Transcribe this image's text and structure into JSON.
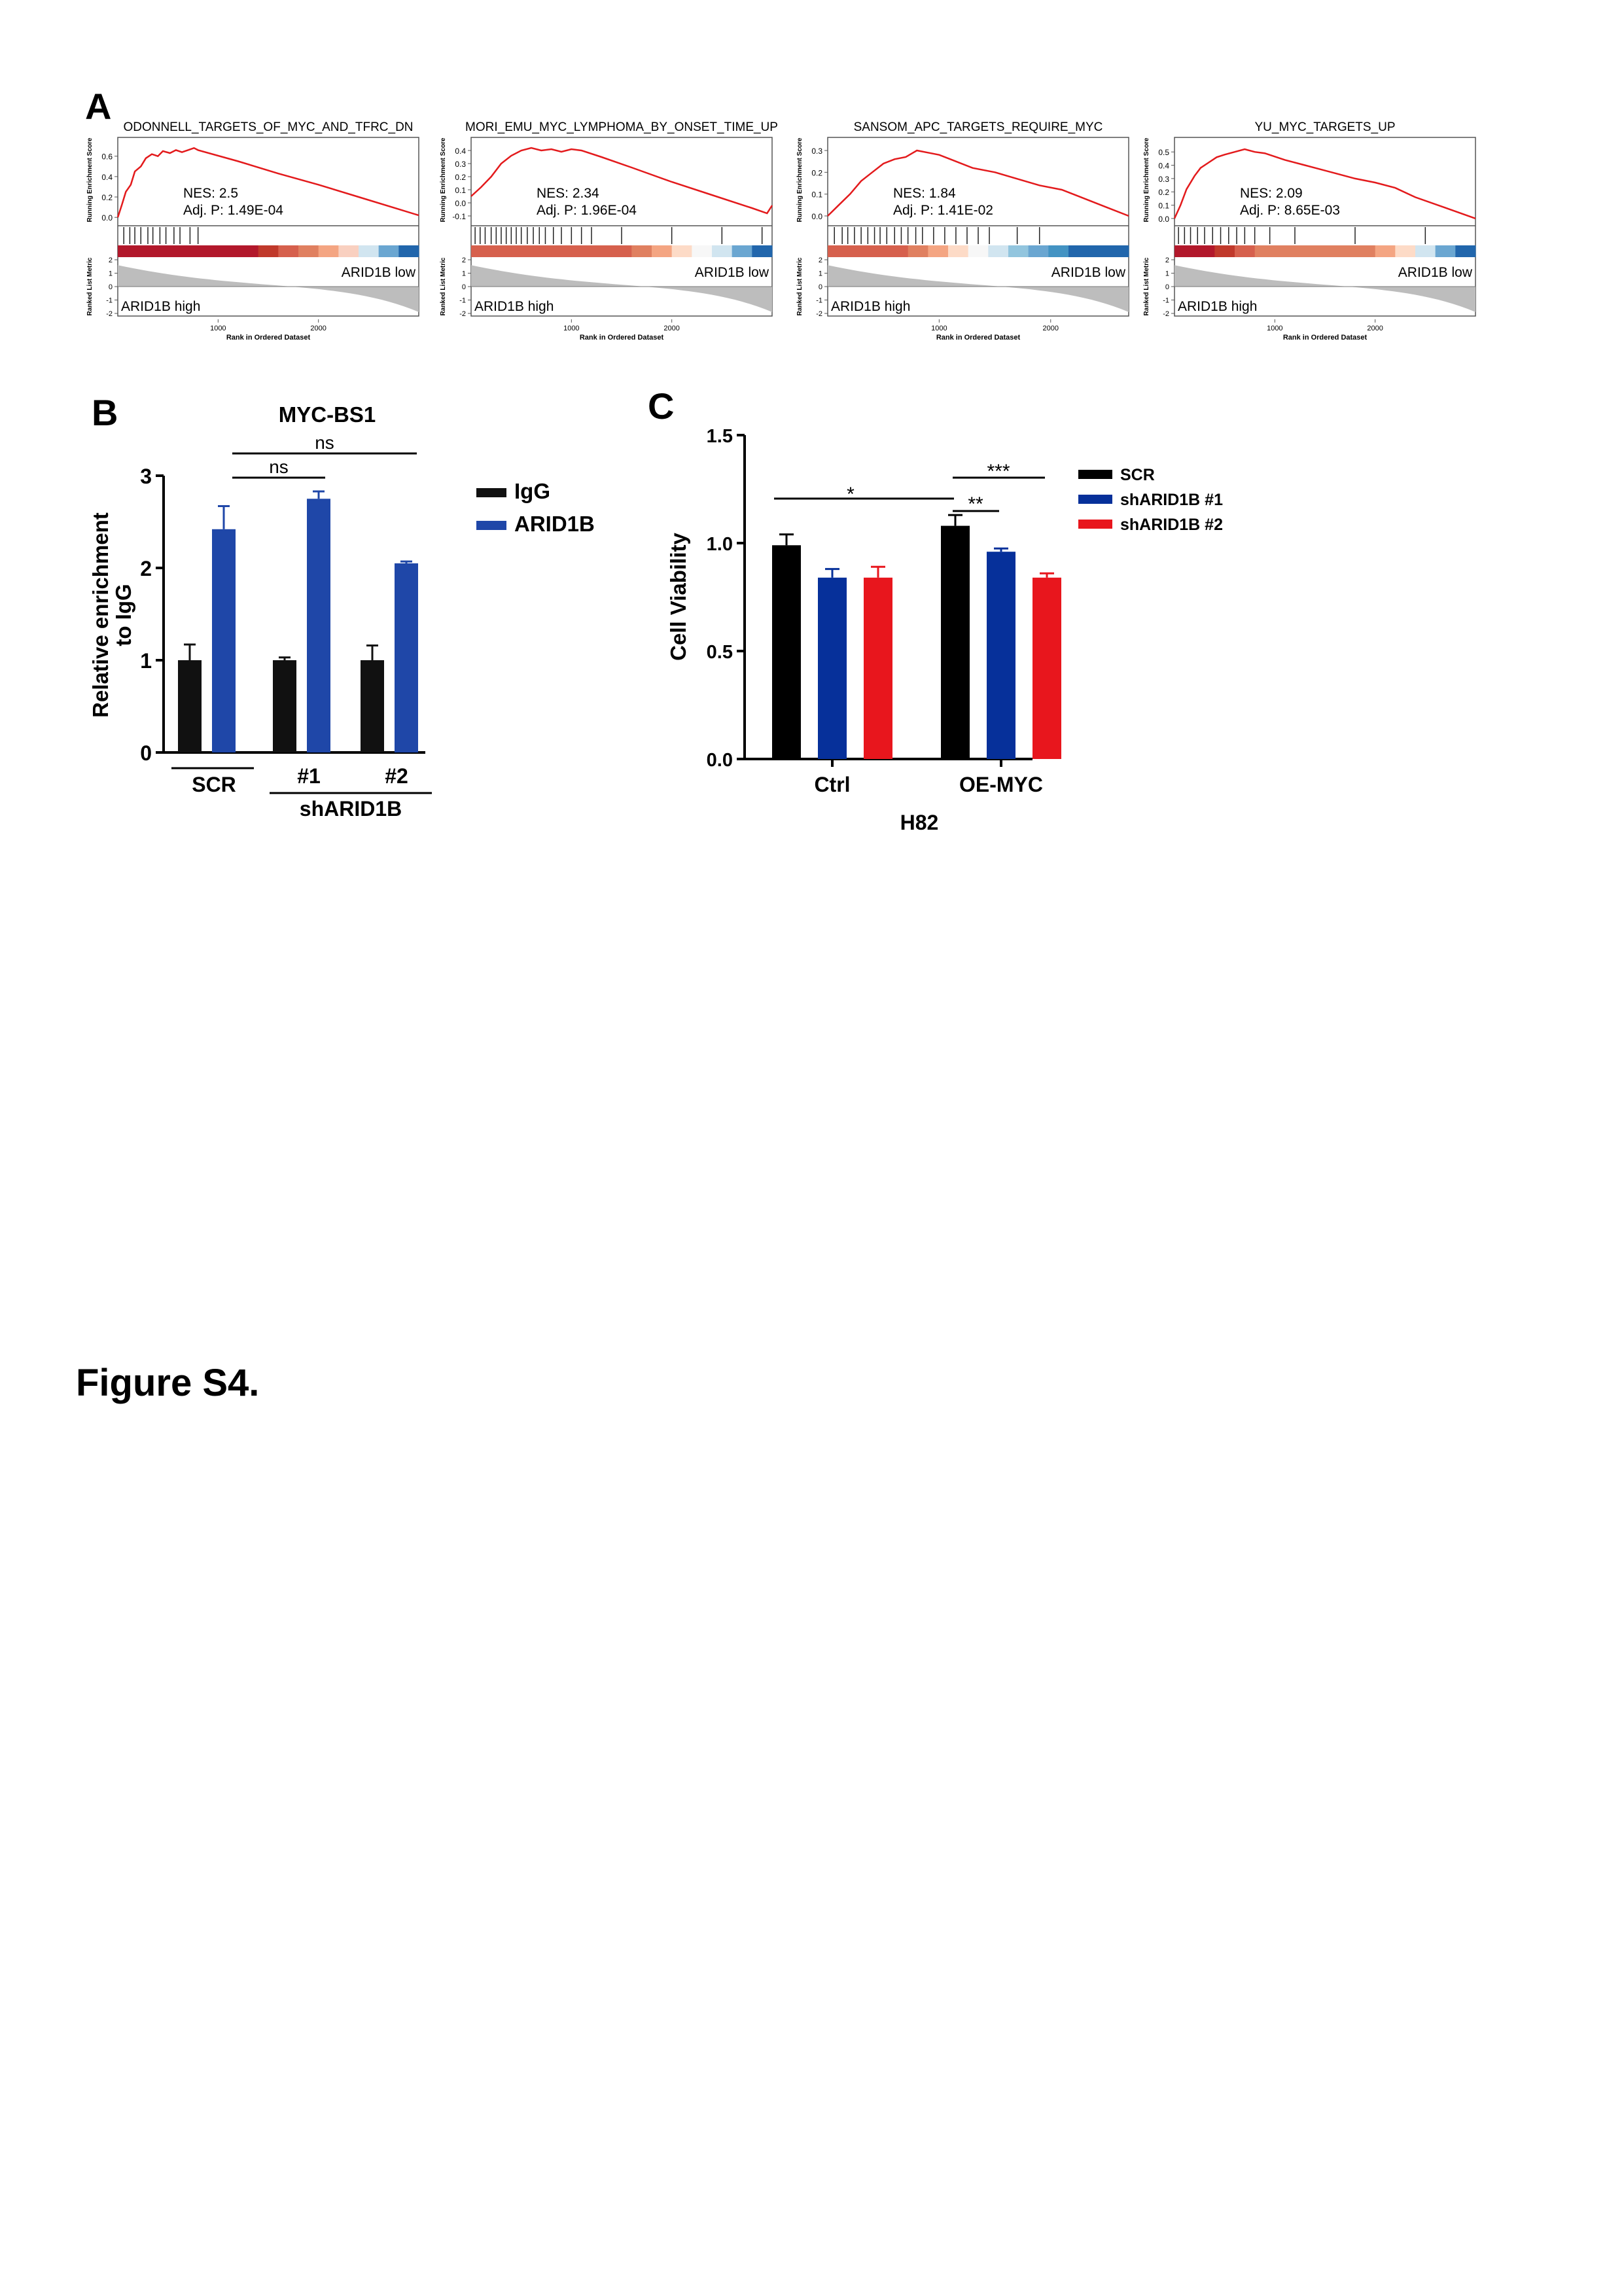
{
  "figure_caption": "Figure S4.",
  "panel_labels": {
    "a": "A",
    "b": "B",
    "c": "C"
  },
  "gsea": {
    "y_axis_top": "Running Enrichment Score",
    "y_axis_bottom": "Ranked List Metric",
    "x_axis": "Rank in Ordered Dataset",
    "low_label": "ARID1B low",
    "high_label": "ARID1B high",
    "nes_prefix": "NES:",
    "adjp_prefix": "Adj. P:",
    "panels": [
      {
        "title": "ODONNELL_TARGETS_OF_MYC_AND_TFRC_DN",
        "nes": "2.5",
        "adj_p": "1.49E-04",
        "es_ticks": [
          "0.6",
          "0.4",
          "0.2",
          "0.0"
        ],
        "es_range": [
          -0.05,
          0.72
        ],
        "rank_ticks": [
          "1000",
          "2000"
        ],
        "rank_max": 3000,
        "metric_ticks": [
          "2",
          "1",
          "0",
          "-1",
          "-2"
        ],
        "es_curve": [
          [
            0,
            0
          ],
          [
            40,
            0.12
          ],
          [
            80,
            0.25
          ],
          [
            130,
            0.32
          ],
          [
            170,
            0.45
          ],
          [
            230,
            0.5
          ],
          [
            280,
            0.58
          ],
          [
            340,
            0.62
          ],
          [
            400,
            0.6
          ],
          [
            450,
            0.65
          ],
          [
            520,
            0.63
          ],
          [
            580,
            0.66
          ],
          [
            640,
            0.64
          ],
          [
            700,
            0.66
          ],
          [
            760,
            0.68
          ],
          [
            800,
            0.66
          ],
          [
            1200,
            0.55
          ],
          [
            1600,
            0.43
          ],
          [
            2000,
            0.32
          ],
          [
            2400,
            0.2
          ],
          [
            2800,
            0.08
          ],
          [
            3000,
            0.02
          ]
        ],
        "hits": [
          60,
          120,
          170,
          230,
          300,
          350,
          420,
          480,
          560,
          620,
          720,
          800
        ],
        "strip": [
          "#b2182b",
          "#b2182b",
          "#b2182b",
          "#b2182b",
          "#b2182b",
          "#b2182b",
          "#b2182b",
          "#c0392b",
          "#d6604d",
          "#e08060",
          "#f4a582",
          "#f9d0c0",
          "#d1e5f0",
          "#6aa6d1",
          "#2166ac"
        ]
      },
      {
        "title": "MORI_EMU_MYC_LYMPHOMA_BY_ONSET_TIME_UP",
        "nes": "2.34",
        "adj_p": "1.96E-04",
        "es_ticks": [
          "0.4",
          "0.3",
          "0.2",
          "0.1",
          "0.0",
          "-0.1"
        ],
        "es_range": [
          -0.15,
          0.45
        ],
        "rank_ticks": [
          "1000",
          "2000"
        ],
        "rank_max": 3000,
        "metric_ticks": [
          "2",
          "1",
          "0",
          "-1",
          "-2"
        ],
        "es_curve": [
          [
            0,
            0.05
          ],
          [
            100,
            0.12
          ],
          [
            200,
            0.2
          ],
          [
            300,
            0.3
          ],
          [
            400,
            0.36
          ],
          [
            500,
            0.4
          ],
          [
            600,
            0.42
          ],
          [
            700,
            0.4
          ],
          [
            800,
            0.41
          ],
          [
            900,
            0.39
          ],
          [
            1000,
            0.41
          ],
          [
            1100,
            0.4
          ],
          [
            1300,
            0.35
          ],
          [
            1600,
            0.27
          ],
          [
            2000,
            0.16
          ],
          [
            2400,
            0.06
          ],
          [
            2800,
            -0.04
          ],
          [
            2950,
            -0.08
          ],
          [
            3000,
            -0.02
          ]
        ],
        "hits": [
          40,
          90,
          140,
          200,
          250,
          300,
          350,
          400,
          450,
          500,
          560,
          620,
          680,
          740,
          820,
          900,
          1000,
          1100,
          1200,
          1500,
          2000,
          2500,
          2900
        ],
        "strip": [
          "#d6604d",
          "#d6604d",
          "#d6604d",
          "#d6604d",
          "#d6604d",
          "#d6604d",
          "#d6604d",
          "#d6604d",
          "#e08060",
          "#f4a582",
          "#fddbc7",
          "#f7f7f7",
          "#d1e5f0",
          "#6aa6d1",
          "#2166ac"
        ]
      },
      {
        "title": "SANSOM_APC_TARGETS_REQUIRE_MYC",
        "nes": "1.84",
        "adj_p": "1.41E-02",
        "es_ticks": [
          "0.3",
          "0.2",
          "0.1",
          "0.0"
        ],
        "es_range": [
          -0.03,
          0.33
        ],
        "rank_ticks": [
          "1000",
          "2000"
        ],
        "rank_max": 2700,
        "metric_ticks": [
          "2",
          "1",
          "0",
          "-1",
          "-2"
        ],
        "es_curve": [
          [
            0,
            0
          ],
          [
            100,
            0.05
          ],
          [
            200,
            0.1
          ],
          [
            300,
            0.16
          ],
          [
            400,
            0.2
          ],
          [
            500,
            0.24
          ],
          [
            600,
            0.26
          ],
          [
            700,
            0.27
          ],
          [
            800,
            0.3
          ],
          [
            900,
            0.29
          ],
          [
            1000,
            0.28
          ],
          [
            1100,
            0.26
          ],
          [
            1300,
            0.22
          ],
          [
            1500,
            0.2
          ],
          [
            1700,
            0.17
          ],
          [
            1900,
            0.14
          ],
          [
            2100,
            0.12
          ],
          [
            2300,
            0.08
          ],
          [
            2500,
            0.04
          ],
          [
            2700,
            0.0
          ]
        ],
        "hits": [
          60,
          130,
          180,
          240,
          300,
          360,
          420,
          470,
          530,
          600,
          660,
          720,
          790,
          850,
          950,
          1050,
          1150,
          1250,
          1350,
          1450,
          1700,
          1900
        ],
        "strip": [
          "#d6604d",
          "#d6604d",
          "#d6604d",
          "#d6604d",
          "#e08060",
          "#f4a582",
          "#fddbc7",
          "#f7f7f7",
          "#d1e5f0",
          "#92c5de",
          "#6aa6d1",
          "#4393c3",
          "#2166ac",
          "#2166ac",
          "#2166ac"
        ]
      },
      {
        "title": "YU_MYC_TARGETS_UP",
        "nes": "2.09",
        "adj_p": "8.65E-03",
        "es_ticks": [
          "0.5",
          "0.4",
          "0.3",
          "0.2",
          "0.1",
          "0.0"
        ],
        "es_range": [
          -0.03,
          0.56
        ],
        "rank_ticks": [
          "1000",
          "2000"
        ],
        "rank_max": 3000,
        "metric_ticks": [
          "2",
          "1",
          "0",
          "-1",
          "-2"
        ],
        "es_curve": [
          [
            0,
            0
          ],
          [
            60,
            0.1
          ],
          [
            120,
            0.22
          ],
          [
            200,
            0.32
          ],
          [
            260,
            0.38
          ],
          [
            340,
            0.42
          ],
          [
            420,
            0.46
          ],
          [
            500,
            0.48
          ],
          [
            600,
            0.5
          ],
          [
            700,
            0.52
          ],
          [
            800,
            0.5
          ],
          [
            900,
            0.49
          ],
          [
            1100,
            0.44
          ],
          [
            1300,
            0.4
          ],
          [
            1600,
            0.34
          ],
          [
            1800,
            0.3
          ],
          [
            2000,
            0.27
          ],
          [
            2200,
            0.23
          ],
          [
            2400,
            0.16
          ],
          [
            2700,
            0.08
          ],
          [
            3000,
            0.0
          ]
        ],
        "hits": [
          40,
          100,
          160,
          230,
          300,
          380,
          460,
          540,
          620,
          700,
          800,
          950,
          1200,
          1800,
          2500
        ],
        "strip": [
          "#b2182b",
          "#b2182b",
          "#c0392b",
          "#d6604d",
          "#e08060",
          "#e08060",
          "#e08060",
          "#e08060",
          "#e08060",
          "#e08060",
          "#f4a582",
          "#fddbc7",
          "#d1e5f0",
          "#6aa6d1",
          "#2166ac"
        ]
      }
    ]
  },
  "chart_data": [
    {
      "type": "bar",
      "title": "MYC-BS1",
      "ylabel": "Relative enrichment to IgG",
      "ylabel_lines": [
        "Relative enrichment",
        "to IgG"
      ],
      "ylim": [
        0,
        3
      ],
      "yticks": [
        "0",
        "1",
        "2",
        "3"
      ],
      "categories": [
        "SCR",
        "#1",
        "#2"
      ],
      "group_label": "shARID1B",
      "series": [
        {
          "name": "IgG",
          "values": [
            1.0,
            1.0,
            1.0
          ],
          "errors": [
            0.17,
            0.03,
            0.16
          ],
          "color": "#111111"
        },
        {
          "name": "ARID1B",
          "values": [
            2.42,
            2.75,
            2.05
          ],
          "errors": [
            0.25,
            0.08,
            0.02
          ],
          "color": "#1f47a8"
        }
      ],
      "significance": [
        {
          "label": "ns",
          "from": 1,
          "to": 2
        },
        {
          "label": "ns",
          "from": 1,
          "to": 3
        }
      ],
      "grid": false,
      "legend": "right"
    },
    {
      "type": "bar",
      "title": "",
      "ylabel": "Cell Viability",
      "xlabel": "H82",
      "ylim": [
        0,
        1.5
      ],
      "yticks": [
        "0.0",
        "0.5",
        "1.0",
        "1.5"
      ],
      "categories": [
        "Ctrl",
        "OE-MYC"
      ],
      "series": [
        {
          "name": "SCR",
          "values": [
            0.99,
            1.08
          ],
          "errors": [
            0.05,
            0.05
          ],
          "color": "#000000"
        },
        {
          "name": "shARID1B #1",
          "values": [
            0.84,
            0.96
          ],
          "errors": [
            0.04,
            0.015
          ],
          "color": "#06309a"
        },
        {
          "name": "shARID1B #2",
          "values": [
            0.84,
            0.84
          ],
          "errors": [
            0.05,
            0.02
          ],
          "color": "#e8161d"
        }
      ],
      "significance": [
        {
          "label": "*",
          "from": "Ctrl SCR",
          "to": "OE-MYC SCR"
        },
        {
          "label": "**",
          "from": "OE-MYC SCR",
          "to": "OE-MYC shARID1B #1"
        },
        {
          "label": "***",
          "from": "OE-MYC SCR",
          "to": "OE-MYC shARID1B #2"
        }
      ],
      "grid": false,
      "legend": "right"
    }
  ]
}
